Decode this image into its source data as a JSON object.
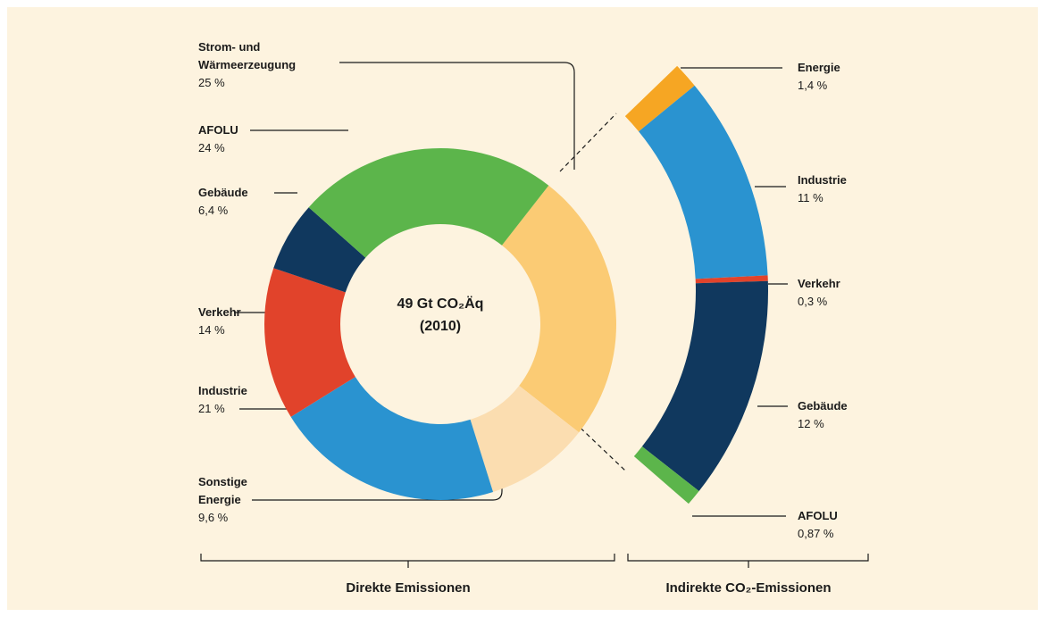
{
  "chart_data": [
    {
      "type": "donut",
      "categories": [
        "Strom- und Wärmeerzeugung",
        "Sonstige Energie",
        "Industrie",
        "Verkehr",
        "Gebäude",
        "AFOLU"
      ],
      "values": [
        25,
        9.6,
        21,
        14,
        6.4,
        24
      ],
      "value_labels": [
        "25 %",
        "9,6 %",
        "21 %",
        "14 %",
        "6,4 %",
        "24 %"
      ],
      "colors": [
        "#fbcb74",
        "#fbddb0",
        "#2a93d0",
        "#e1432b",
        "#10385e",
        "#5cb54b"
      ],
      "center_label": [
        "49 Gt CO₂Äq",
        "(2010)"
      ],
      "group_label": "Direkte Emissionen"
    },
    {
      "type": "arc",
      "categories": [
        "Energie",
        "Industrie",
        "Verkehr",
        "Gebäude",
        "AFOLU"
      ],
      "values": [
        1.4,
        11,
        0.3,
        12,
        0.87
      ],
      "value_labels": [
        "1,4 %",
        "11 %",
        "0,3 %",
        "12 %",
        "0,87 %"
      ],
      "colors": [
        "#f6a623",
        "#2a93d0",
        "#e1432b",
        "#10385e",
        "#5cb54b"
      ],
      "group_label": "Indirekte CO₂-Emissionen"
    }
  ]
}
